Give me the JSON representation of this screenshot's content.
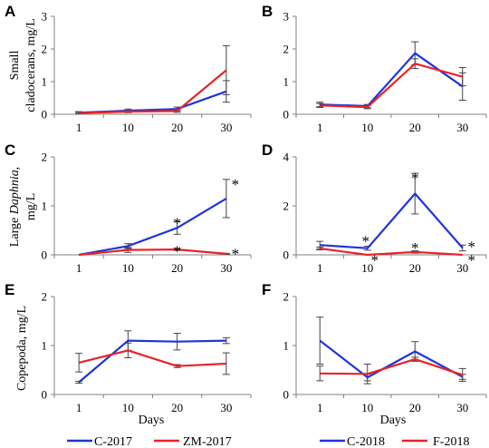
{
  "colors": {
    "blue": "#1f35d9",
    "red": "#e8232a",
    "axis": "#808080",
    "error": "#444444"
  },
  "legends": [
    {
      "series": [
        {
          "name": "C-2017",
          "color": "#1f35d9"
        },
        {
          "name": "ZM-2017",
          "color": "#e8232a"
        }
      ]
    },
    {
      "series": [
        {
          "name": "C-2018",
          "color": "#1f35d9"
        },
        {
          "name": "F-2018",
          "color": "#e8232a"
        }
      ]
    }
  ],
  "row_labels": [
    {
      "parts": [
        {
          "text": "Small",
          "italic": false
        }
      ],
      "parts2": [
        {
          "text": "cladocerans, mg/L",
          "italic": false
        }
      ]
    },
    {
      "parts": [
        {
          "text": "Large ",
          "italic": false
        },
        {
          "text": "Daphnia",
          "italic": true
        },
        {
          "text": ",",
          "italic": false
        }
      ],
      "parts2": [
        {
          "text": "mg/L",
          "italic": false
        }
      ]
    },
    {
      "parts": [
        {
          "text": "Copepoda, mg/L",
          "italic": false
        }
      ],
      "parts2": []
    }
  ],
  "x_axis_label": "Days",
  "chart_data": [
    {
      "panel": "A",
      "type": "line",
      "categories": [
        "1",
        "10",
        "20",
        "30"
      ],
      "ylim": [
        0,
        3
      ],
      "yticks": [
        0,
        1,
        2,
        3
      ],
      "series": [
        {
          "name": "C-2017",
          "color": "#1f35d9",
          "values": [
            0.05,
            0.11,
            0.16,
            0.7
          ],
          "errors": [
            0.03,
            0.05,
            0.06,
            0.33
          ]
        },
        {
          "name": "ZM-2017",
          "color": "#e8232a",
          "values": [
            0.04,
            0.08,
            0.1,
            1.35
          ],
          "errors": [
            0.02,
            0.03,
            0.04,
            0.75
          ]
        }
      ],
      "stars": []
    },
    {
      "panel": "B",
      "type": "line",
      "categories": [
        "1",
        "10",
        "20",
        "30"
      ],
      "ylim": [
        0,
        3
      ],
      "yticks": [
        0,
        1,
        2,
        3
      ],
      "series": [
        {
          "name": "C-2018",
          "color": "#1f35d9",
          "values": [
            0.3,
            0.25,
            1.87,
            0.85
          ],
          "errors": [
            0.07,
            0.05,
            0.35,
            0.42
          ]
        },
        {
          "name": "F-2018",
          "color": "#e8232a",
          "values": [
            0.27,
            0.22,
            1.55,
            1.15
          ],
          "errors": [
            0.06,
            0.05,
            0.15,
            0.28
          ]
        }
      ],
      "stars": []
    },
    {
      "panel": "C",
      "type": "line",
      "categories": [
        "1",
        "10",
        "20",
        "30"
      ],
      "ylim": [
        0,
        2
      ],
      "yticks": [
        0,
        1,
        2
      ],
      "series": [
        {
          "name": "C-2017",
          "color": "#1f35d9",
          "values": [
            0.0,
            0.18,
            0.55,
            1.15
          ],
          "errors": [
            0.0,
            0.05,
            0.13,
            0.39
          ]
        },
        {
          "name": "ZM-2017",
          "color": "#e8232a",
          "values": [
            0.0,
            0.1,
            0.11,
            0.02
          ],
          "errors": [
            0.0,
            0.05,
            0.02,
            0.01
          ]
        }
      ],
      "stars": [
        {
          "text": "*",
          "category": "20",
          "value": 0.73,
          "dx": 0
        },
        {
          "text": "*",
          "category": "20",
          "value": 0.16,
          "dx": 0
        },
        {
          "text": "*",
          "category": "30",
          "value": 1.52,
          "dx": 10
        },
        {
          "text": "*",
          "category": "30",
          "value": 0.1,
          "dx": 10
        }
      ]
    },
    {
      "panel": "D",
      "type": "line",
      "categories": [
        "1",
        "10",
        "20",
        "30"
      ],
      "ylim": [
        0,
        4
      ],
      "yticks": [
        0,
        2,
        4
      ],
      "series": [
        {
          "name": "C-2018",
          "color": "#1f35d9",
          "values": [
            0.4,
            0.27,
            2.5,
            0.28
          ],
          "errors": [
            0.15,
            0.08,
            0.83,
            0.12
          ]
        },
        {
          "name": "F-2018",
          "color": "#e8232a",
          "values": [
            0.26,
            0.0,
            0.12,
            0.0
          ],
          "errors": [
            0.06,
            0.0,
            0.05,
            0.0
          ]
        }
      ],
      "stars": [
        {
          "text": "*",
          "category": "10",
          "value": 0.72,
          "dx": -2
        },
        {
          "text": "*",
          "category": "10",
          "value": -0.05,
          "dx": 8
        },
        {
          "text": "*",
          "category": "20",
          "value": 3.3,
          "dx": 0
        },
        {
          "text": "*",
          "category": "20",
          "value": 0.45,
          "dx": 0
        },
        {
          "text": "*",
          "category": "30",
          "value": 0.5,
          "dx": 10
        },
        {
          "text": "*",
          "category": "30",
          "value": -0.05,
          "dx": 10
        }
      ]
    },
    {
      "panel": "E",
      "type": "line",
      "categories": [
        "1",
        "10",
        "20",
        "30"
      ],
      "ylim": [
        0,
        2
      ],
      "yticks": [
        0,
        1,
        2
      ],
      "series": [
        {
          "name": "C-2017",
          "color": "#1f35d9",
          "values": [
            0.25,
            1.1,
            1.08,
            1.1
          ],
          "errors": [
            0.02,
            0.2,
            0.17,
            0.06
          ]
        },
        {
          "name": "ZM-2017",
          "color": "#e8232a",
          "values": [
            0.65,
            0.9,
            0.58,
            0.63
          ],
          "errors": [
            0.19,
            0.15,
            0.03,
            0.22
          ]
        }
      ],
      "stars": []
    },
    {
      "panel": "F",
      "type": "line",
      "categories": [
        "1",
        "10",
        "20",
        "30"
      ],
      "ylim": [
        0,
        2
      ],
      "yticks": [
        0,
        1,
        2
      ],
      "series": [
        {
          "name": "C-2018",
          "color": "#1f35d9",
          "values": [
            1.1,
            0.35,
            0.88,
            0.36
          ],
          "errors": [
            0.48,
            0.07,
            0.2,
            0.05
          ]
        },
        {
          "name": "F-2018",
          "color": "#e8232a",
          "values": [
            0.43,
            0.42,
            0.72,
            0.4
          ],
          "errors": [
            0.15,
            0.2,
            0.04,
            0.13
          ]
        }
      ],
      "stars": []
    }
  ]
}
